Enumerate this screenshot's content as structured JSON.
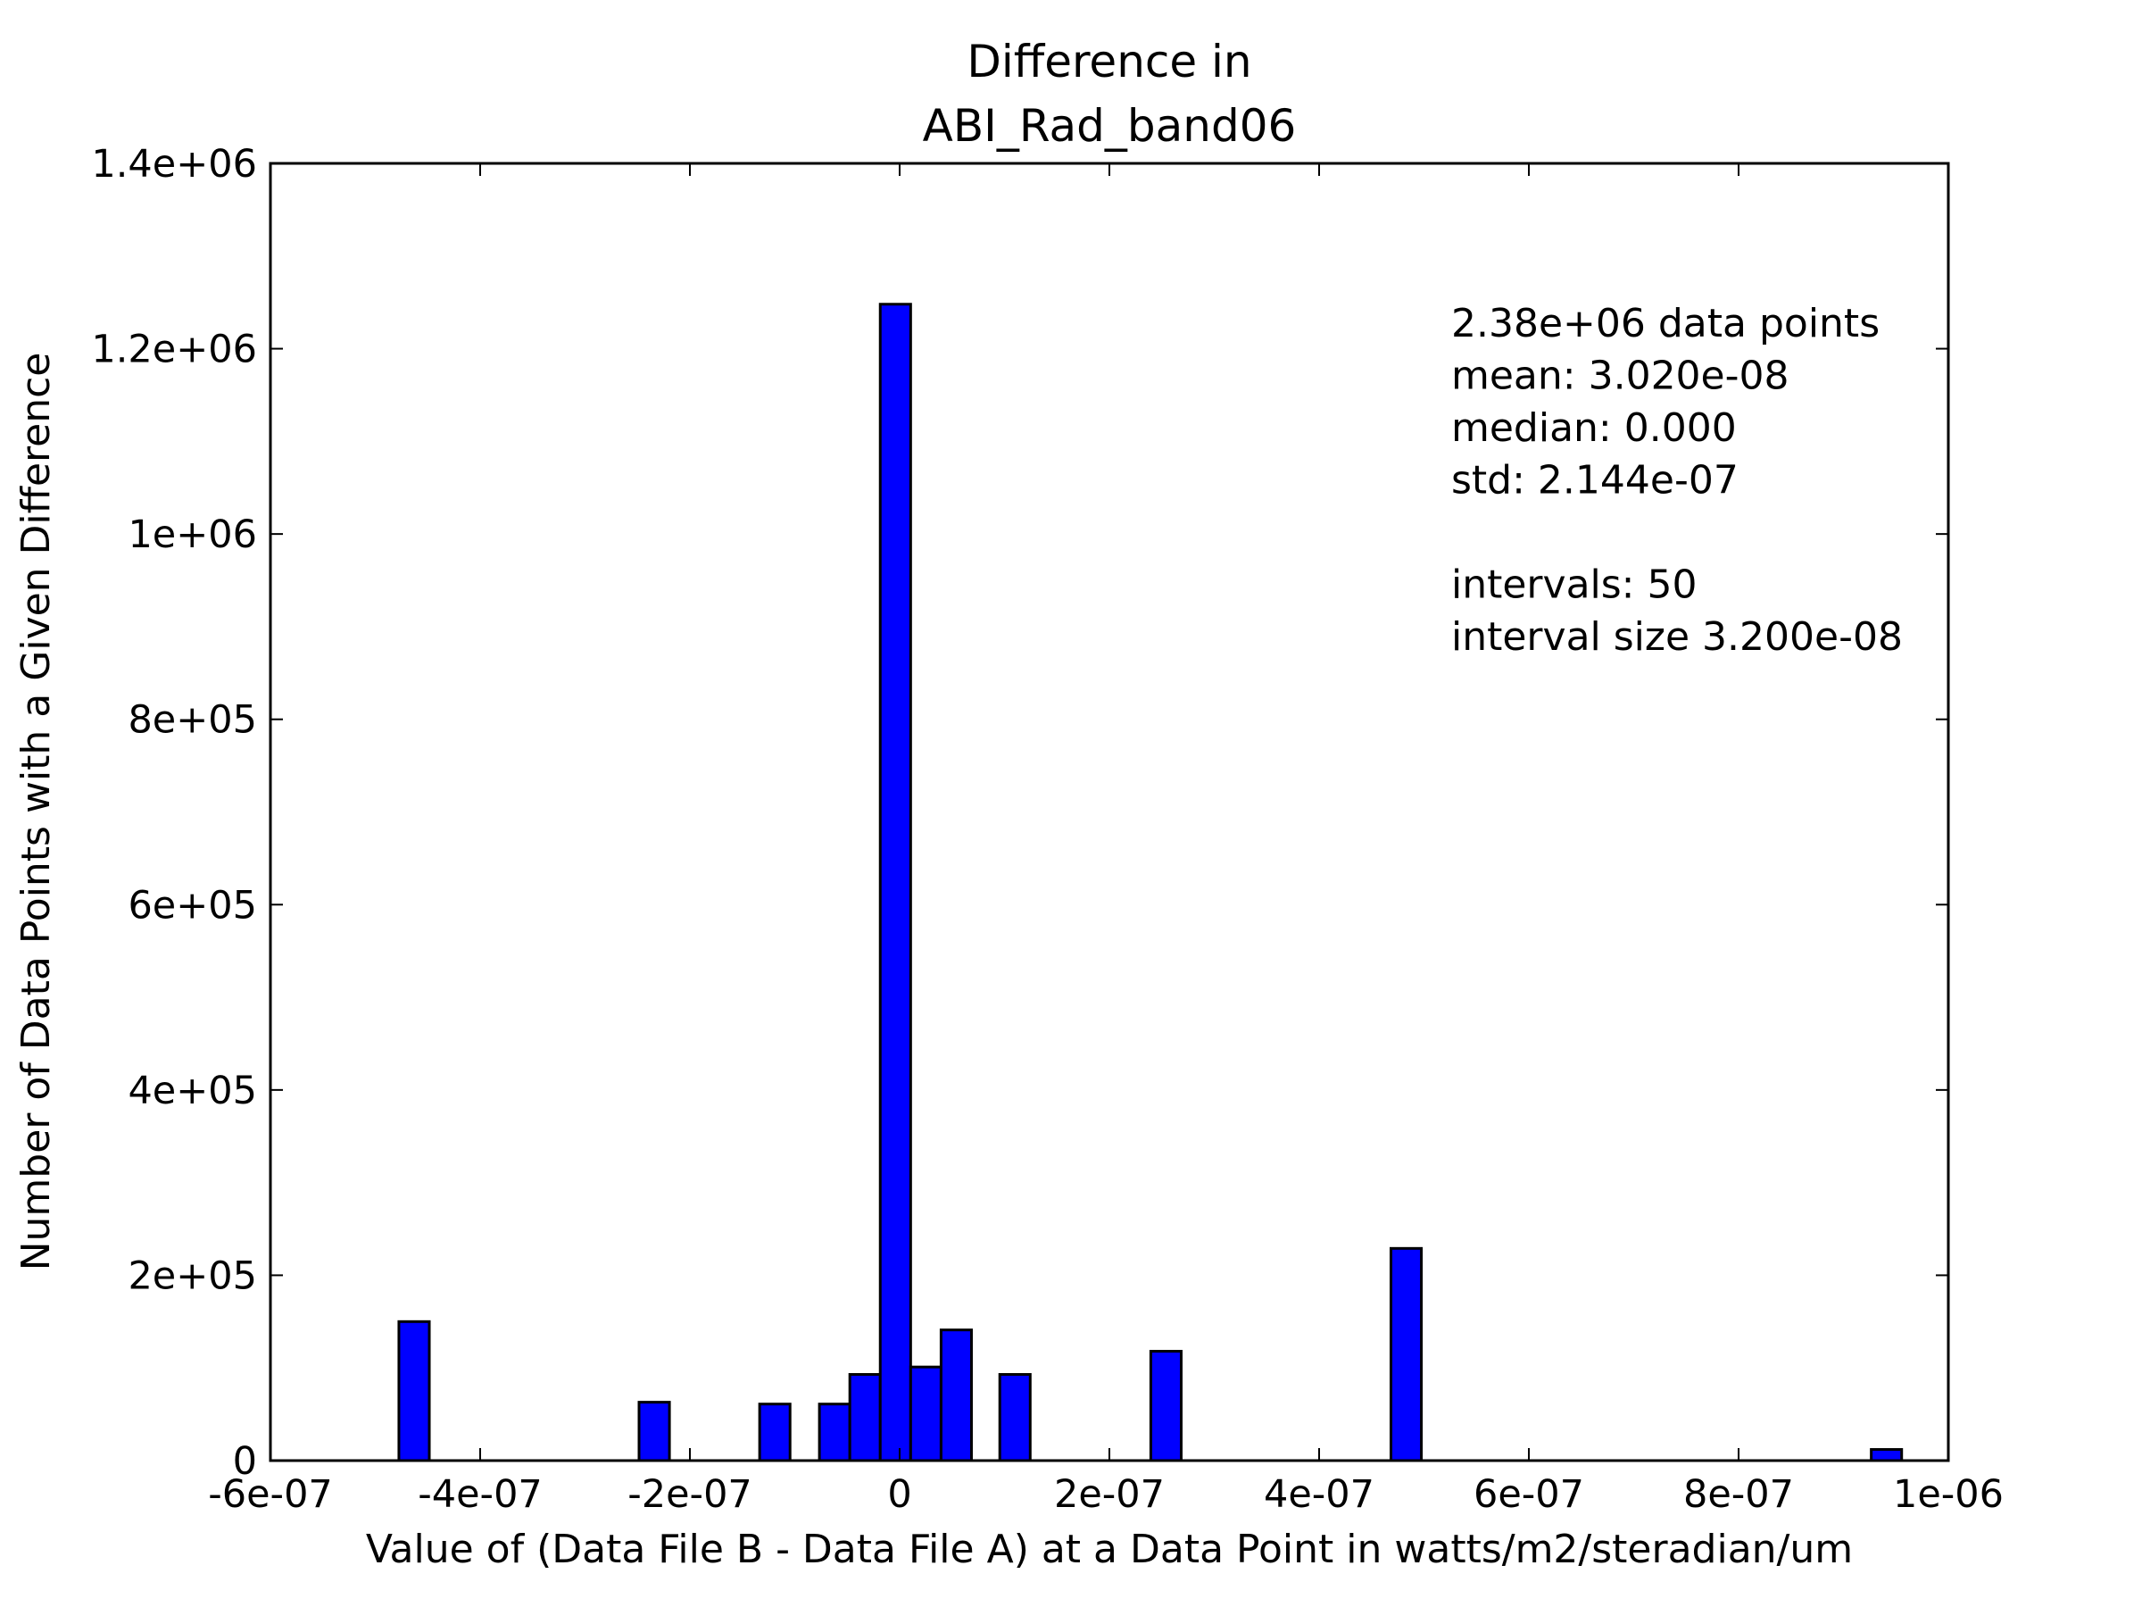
{
  "chart_data": {
    "type": "bar",
    "title_lines": [
      "Difference in",
      "ABI_Rad_band06"
    ],
    "xlabel": "Value of (Data File B - Data File A) at a Data Point in watts/m2/steradian/um",
    "ylabel": "Number of Data Points with a Given Difference",
    "xlim": [
      -6e-07,
      1e-06
    ],
    "ylim": [
      0,
      1400000
    ],
    "bar_width": 2.9e-08,
    "bar_color": "#0000ff",
    "x_ticks": [
      -6e-07,
      -4e-07,
      -2e-07,
      0,
      2e-07,
      4e-07,
      6e-07,
      8e-07,
      1e-06
    ],
    "x_tick_labels": [
      "-6e-07",
      "-4e-07",
      "-2e-07",
      "0",
      "2e-07",
      "4e-07",
      "6e-07",
      "8e-07",
      "1e-06"
    ],
    "y_ticks": [
      0,
      200000,
      400000,
      600000,
      800000,
      1000000,
      1200000,
      1400000
    ],
    "y_tick_labels": [
      "0",
      "2e+05",
      "4e+05",
      "6e+05",
      "8e+05",
      "1e+06",
      "1.2e+06",
      "1.4e+06"
    ],
    "bars": [
      {
        "x": -4.63e-07,
        "y": 150000
      },
      {
        "x": -2.34e-07,
        "y": 63000
      },
      {
        "x": -1.19e-07,
        "y": 61000
      },
      {
        "x": -6.2e-08,
        "y": 61000
      },
      {
        "x": -3.3e-08,
        "y": 93000
      },
      {
        "x": -4e-09,
        "y": 1248000
      },
      {
        "x": 2.5e-08,
        "y": 101000
      },
      {
        "x": 5.4e-08,
        "y": 141000
      },
      {
        "x": 1.1e-07,
        "y": 93000
      },
      {
        "x": 2.54e-07,
        "y": 118000
      },
      {
        "x": 4.83e-07,
        "y": 229000
      },
      {
        "x": 9.41e-07,
        "y": 12000
      }
    ],
    "grid": false,
    "annotation_lines": [
      "2.38e+06 data points",
      "mean: 3.020e-08",
      "median: 0.000",
      "std: 2.144e-07",
      "",
      "intervals: 50",
      "interval size 3.200e-08"
    ]
  }
}
